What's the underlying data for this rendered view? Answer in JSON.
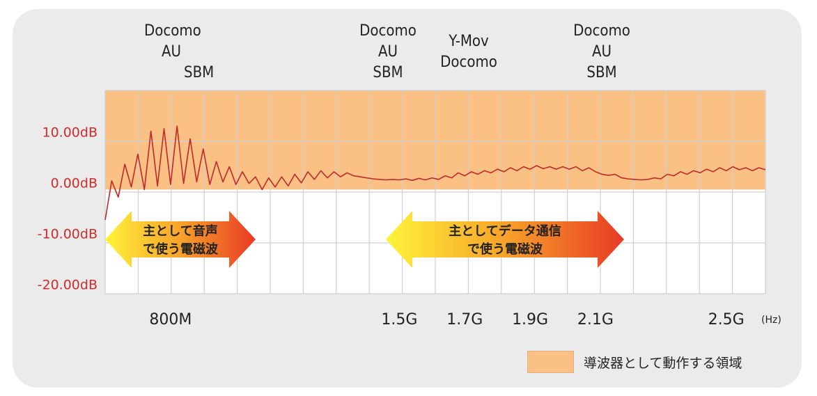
{
  "carriers": [
    {
      "lines": [
        "Docomo",
        "AU",
        "SBM"
      ]
    },
    {
      "lines": [
        "Docomo",
        "AU",
        "SBM"
      ]
    },
    {
      "lines": [
        "Y-Mov",
        "Docomo"
      ]
    },
    {
      "lines": [
        "Docomo",
        "AU",
        "SBM"
      ]
    }
  ],
  "legend": {
    "label": "導波器として動作する領域",
    "color": "#fbc084"
  },
  "arrows": {
    "voice": {
      "line1": "主として音声",
      "line2": "で使う電磁波"
    },
    "data": {
      "line1": "主としてデータ通信",
      "line2": "で使う電磁波"
    }
  },
  "colors": {
    "trace": "#c0282a",
    "axis_label": "#d12a2a",
    "region": "#fbc084"
  },
  "chart_data": {
    "type": "line",
    "y_ticks": [
      {
        "value": 10,
        "label": "10.00dB"
      },
      {
        "value": 0,
        "label": "0.00dB"
      },
      {
        "value": -10,
        "label": "-10.00dB"
      },
      {
        "value": -20,
        "label": "-20.00dB"
      }
    ],
    "x_ticks": [
      {
        "value": 800,
        "label": "800M"
      },
      {
        "value": 1500,
        "label": "1.5G"
      },
      {
        "value": 1700,
        "label": "1.7G"
      },
      {
        "value": 1900,
        "label": "1.9G"
      },
      {
        "value": 2100,
        "label": "2.1G"
      },
      {
        "value": 2500,
        "label": "2.5G"
      }
    ],
    "x_unit": "(Hz)",
    "ylim": [
      -22,
      18
    ],
    "highlight_region_ylim": [
      -1.5,
      18
    ],
    "series": [
      {
        "values": [
          [
            600,
            -7.5
          ],
          [
            620,
            0.2
          ],
          [
            640,
            -3
          ],
          [
            660,
            3.5
          ],
          [
            680,
            -1
          ],
          [
            700,
            5.5
          ],
          [
            720,
            -1.5
          ],
          [
            740,
            10
          ],
          [
            760,
            -0.8
          ],
          [
            780,
            10.5
          ],
          [
            800,
            -0.5
          ],
          [
            820,
            11
          ],
          [
            840,
            -0.3
          ],
          [
            860,
            8.5
          ],
          [
            880,
            0
          ],
          [
            900,
            6.5
          ],
          [
            920,
            -0.5
          ],
          [
            940,
            4
          ],
          [
            960,
            0
          ],
          [
            980,
            3
          ],
          [
            1000,
            -0.5
          ],
          [
            1020,
            2
          ],
          [
            1040,
            -0.3
          ],
          [
            1060,
            1
          ],
          [
            1080,
            -1.5
          ],
          [
            1100,
            0.8
          ],
          [
            1120,
            -1
          ],
          [
            1140,
            1
          ],
          [
            1160,
            -0.8
          ],
          [
            1180,
            1.5
          ],
          [
            1200,
            -0.2
          ],
          [
            1220,
            2
          ],
          [
            1240,
            0.5
          ],
          [
            1260,
            2.2
          ],
          [
            1280,
            0.8
          ],
          [
            1300,
            2
          ],
          [
            1320,
            1
          ],
          [
            1340,
            1.8
          ],
          [
            1360,
            1.2
          ],
          [
            1380,
            1
          ],
          [
            1400,
            0.8
          ],
          [
            1420,
            0.6
          ],
          [
            1440,
            0.5
          ],
          [
            1460,
            0.4
          ],
          [
            1480,
            0.5
          ],
          [
            1500,
            0.4
          ],
          [
            1520,
            0.6
          ],
          [
            1540,
            0.3
          ],
          [
            1560,
            0.7
          ],
          [
            1580,
            0.4
          ],
          [
            1600,
            0.8
          ],
          [
            1620,
            0.5
          ],
          [
            1640,
            1.2
          ],
          [
            1660,
            0.8
          ],
          [
            1680,
            1.8
          ],
          [
            1700,
            1.2
          ],
          [
            1720,
            2
          ],
          [
            1740,
            1.5
          ],
          [
            1760,
            2.2
          ],
          [
            1780,
            1.8
          ],
          [
            1800,
            2.5
          ],
          [
            1820,
            2
          ],
          [
            1840,
            2.8
          ],
          [
            1860,
            2.2
          ],
          [
            1880,
            3
          ],
          [
            1900,
            2.5
          ],
          [
            1920,
            3.2
          ],
          [
            1940,
            2.6
          ],
          [
            1960,
            3
          ],
          [
            1980,
            2.5
          ],
          [
            2000,
            3
          ],
          [
            2020,
            2.5
          ],
          [
            2040,
            3
          ],
          [
            2060,
            2.2
          ],
          [
            2080,
            2.8
          ],
          [
            2100,
            2
          ],
          [
            2120,
            1.5
          ],
          [
            2140,
            1.3
          ],
          [
            2160,
            1.5
          ],
          [
            2180,
            0.8
          ],
          [
            2200,
            0.6
          ],
          [
            2220,
            0.5
          ],
          [
            2240,
            0.4
          ],
          [
            2260,
            0.5
          ],
          [
            2280,
            0.8
          ],
          [
            2300,
            0.6
          ],
          [
            2320,
            1.5
          ],
          [
            2340,
            1.2
          ],
          [
            2360,
            2
          ],
          [
            2380,
            1.5
          ],
          [
            2400,
            2.2
          ],
          [
            2420,
            1.8
          ],
          [
            2440,
            2.5
          ],
          [
            2460,
            2
          ],
          [
            2480,
            2.8
          ],
          [
            2500,
            2.2
          ],
          [
            2520,
            3
          ],
          [
            2540,
            2.4
          ],
          [
            2560,
            2.8
          ],
          [
            2580,
            2.2
          ],
          [
            2600,
            2.8
          ],
          [
            2620,
            2.4
          ]
        ]
      }
    ]
  }
}
